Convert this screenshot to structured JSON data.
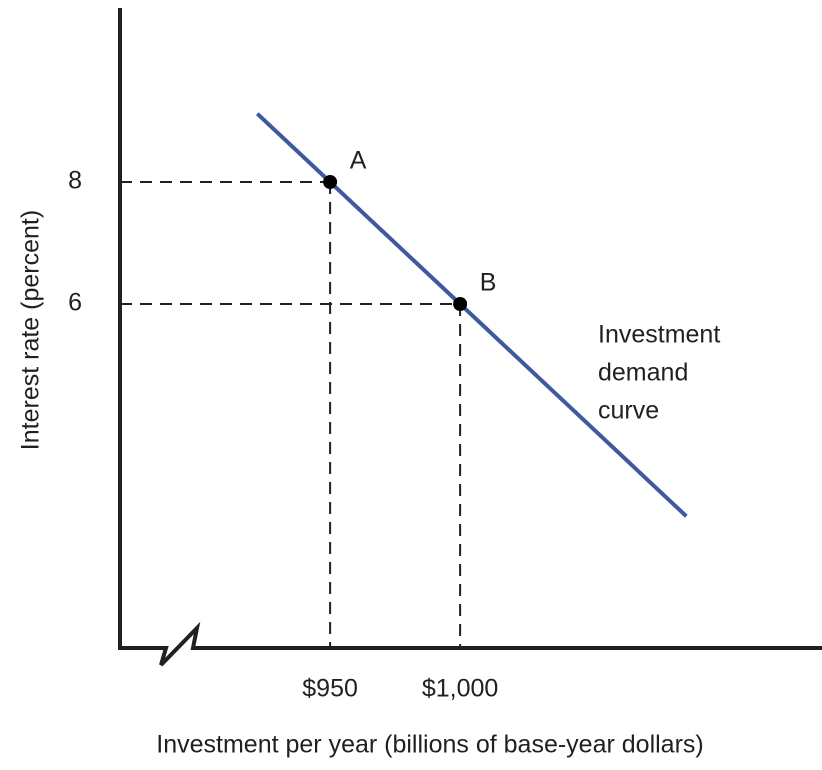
{
  "chart_data": {
    "type": "line",
    "x_label": "Investment per year (billions of base-year dollars)",
    "y_label": "Interest rate (percent)",
    "xlim": [
      869.2,
      1138.4
    ],
    "ylim": [
      0.36,
      10.82
    ],
    "xticks": [
      {
        "value": 950,
        "label": "$950"
      },
      {
        "value": 1000,
        "label": "$1,000"
      }
    ],
    "yticks": [
      8,
      6
    ],
    "series": [
      {
        "color": "#3d5a9e",
        "x": [
          922,
          950,
          1000,
          1087
        ],
        "values": [
          9.12,
          8,
          6,
          2.52
        ]
      }
    ],
    "curve_label": [
      "Investment",
      "demand",
      "curve"
    ],
    "points": [
      {
        "label": "A",
        "x": 950,
        "y": 8
      },
      {
        "label": "B",
        "x": 1000,
        "y": 6
      }
    ],
    "guides": true
  }
}
